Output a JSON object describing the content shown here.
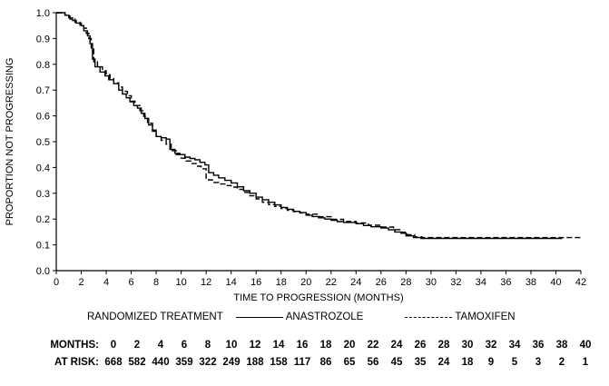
{
  "chart_data": {
    "type": "line",
    "title": "",
    "xlabel": "TIME TO PROGRESSION (MONTHS)",
    "ylabel": "PROPORTION NOT PROGRESSING",
    "xlim": [
      0,
      42
    ],
    "ylim": [
      0,
      1.0
    ],
    "xticks": [
      0,
      2,
      4,
      6,
      8,
      10,
      12,
      14,
      16,
      18,
      20,
      22,
      24,
      26,
      28,
      30,
      32,
      34,
      36,
      38,
      40,
      42
    ],
    "yticks": [
      0.0,
      0.1,
      0.2,
      0.3,
      0.4,
      0.5,
      0.6,
      0.7,
      0.8,
      0.9,
      1.0
    ],
    "grid": false,
    "legend_position": "bottom",
    "legend_title": "RANDOMIZED TREATMENT",
    "series": [
      {
        "name": "ANASTROZOLE",
        "style": "solid",
        "points": [
          [
            0,
            1.0
          ],
          [
            0.7,
            0.99
          ],
          [
            1.0,
            0.98
          ],
          [
            1.3,
            0.97
          ],
          [
            1.6,
            0.96
          ],
          [
            2.0,
            0.95
          ],
          [
            2.2,
            0.93
          ],
          [
            2.5,
            0.91
          ],
          [
            2.7,
            0.88
          ],
          [
            2.9,
            0.82
          ],
          [
            3.1,
            0.79
          ],
          [
            3.5,
            0.77
          ],
          [
            3.9,
            0.755
          ],
          [
            4.2,
            0.74
          ],
          [
            4.6,
            0.725
          ],
          [
            5.0,
            0.7
          ],
          [
            5.3,
            0.685
          ],
          [
            5.6,
            0.67
          ],
          [
            5.9,
            0.655
          ],
          [
            6.2,
            0.64
          ],
          [
            6.5,
            0.63
          ],
          [
            6.8,
            0.61
          ],
          [
            7.1,
            0.59
          ],
          [
            7.4,
            0.565
          ],
          [
            7.7,
            0.54
          ],
          [
            8.0,
            0.52
          ],
          [
            8.4,
            0.515
          ],
          [
            8.8,
            0.51
          ],
          [
            9.1,
            0.47
          ],
          [
            9.5,
            0.455
          ],
          [
            9.9,
            0.45
          ],
          [
            10.3,
            0.44
          ],
          [
            10.7,
            0.435
          ],
          [
            11.1,
            0.43
          ],
          [
            11.5,
            0.42
          ],
          [
            11.9,
            0.41
          ],
          [
            12.2,
            0.38
          ],
          [
            12.6,
            0.37
          ],
          [
            13.0,
            0.36
          ],
          [
            13.5,
            0.35
          ],
          [
            14.0,
            0.34
          ],
          [
            14.5,
            0.325
          ],
          [
            15.0,
            0.31
          ],
          [
            15.5,
            0.3
          ],
          [
            16.0,
            0.285
          ],
          [
            16.5,
            0.275
          ],
          [
            17.0,
            0.265
          ],
          [
            17.5,
            0.255
          ],
          [
            18.0,
            0.245
          ],
          [
            18.5,
            0.238
          ],
          [
            19.0,
            0.23
          ],
          [
            19.5,
            0.225
          ],
          [
            20.0,
            0.215
          ],
          [
            20.5,
            0.21
          ],
          [
            21.0,
            0.205
          ],
          [
            21.5,
            0.2
          ],
          [
            22.0,
            0.195
          ],
          [
            22.5,
            0.19
          ],
          [
            23.0,
            0.187
          ],
          [
            24.0,
            0.182
          ],
          [
            24.6,
            0.175
          ],
          [
            25.2,
            0.17
          ],
          [
            26.0,
            0.165
          ],
          [
            26.6,
            0.158
          ],
          [
            27.1,
            0.15
          ],
          [
            27.6,
            0.145
          ],
          [
            28.0,
            0.135
          ],
          [
            28.6,
            0.128
          ],
          [
            29.2,
            0.125
          ],
          [
            40.5,
            0.125
          ]
        ]
      },
      {
        "name": "TAMOXIFEN",
        "style": "dashed",
        "points": [
          [
            0,
            1.0
          ],
          [
            0.7,
            0.99
          ],
          [
            1.1,
            0.975
          ],
          [
            1.5,
            0.963
          ],
          [
            1.9,
            0.952
          ],
          [
            2.2,
            0.94
          ],
          [
            2.4,
            0.92
          ],
          [
            2.6,
            0.9
          ],
          [
            2.8,
            0.86
          ],
          [
            3.0,
            0.81
          ],
          [
            3.3,
            0.79
          ],
          [
            3.7,
            0.775
          ],
          [
            4.0,
            0.76
          ],
          [
            4.3,
            0.745
          ],
          [
            4.6,
            0.728
          ],
          [
            5.0,
            0.712
          ],
          [
            5.3,
            0.695
          ],
          [
            5.7,
            0.678
          ],
          [
            6.0,
            0.657
          ],
          [
            6.3,
            0.64
          ],
          [
            6.7,
            0.62
          ],
          [
            7.0,
            0.598
          ],
          [
            7.3,
            0.572
          ],
          [
            7.7,
            0.545
          ],
          [
            8.0,
            0.52
          ],
          [
            8.4,
            0.505
          ],
          [
            8.8,
            0.49
          ],
          [
            9.2,
            0.465
          ],
          [
            9.6,
            0.45
          ],
          [
            10.0,
            0.436
          ],
          [
            10.4,
            0.425
          ],
          [
            10.8,
            0.415
          ],
          [
            11.2,
            0.405
          ],
          [
            11.6,
            0.395
          ],
          [
            12.0,
            0.352
          ],
          [
            12.5,
            0.342
          ],
          [
            13.0,
            0.336
          ],
          [
            13.5,
            0.33
          ],
          [
            14.0,
            0.324
          ],
          [
            14.5,
            0.315
          ],
          [
            15.0,
            0.303
          ],
          [
            15.5,
            0.29
          ],
          [
            16.0,
            0.278
          ],
          [
            16.5,
            0.265
          ],
          [
            17.0,
            0.256
          ],
          [
            17.5,
            0.249
          ],
          [
            18.0,
            0.241
          ],
          [
            18.5,
            0.234
          ],
          [
            19.0,
            0.229
          ],
          [
            19.5,
            0.224
          ],
          [
            20.0,
            0.219
          ],
          [
            21.0,
            0.209
          ],
          [
            22.0,
            0.199
          ],
          [
            23.0,
            0.191
          ],
          [
            24.0,
            0.185
          ],
          [
            25.0,
            0.176
          ],
          [
            26.0,
            0.169
          ],
          [
            27.0,
            0.159
          ],
          [
            27.6,
            0.149
          ],
          [
            28.1,
            0.139
          ],
          [
            28.7,
            0.131
          ],
          [
            29.3,
            0.128
          ],
          [
            42.0,
            0.128
          ]
        ]
      }
    ]
  },
  "risk_table": {
    "months_label": "MONTHS:",
    "at_risk_label": "AT RISK:",
    "months": [
      0,
      2,
      4,
      6,
      8,
      10,
      12,
      14,
      16,
      18,
      20,
      22,
      24,
      26,
      28,
      30,
      32,
      34,
      36,
      38,
      40
    ],
    "at_risk": [
      668,
      582,
      440,
      359,
      322,
      249,
      188,
      158,
      117,
      86,
      65,
      56,
      45,
      35,
      24,
      18,
      9,
      5,
      3,
      2,
      1
    ]
  }
}
